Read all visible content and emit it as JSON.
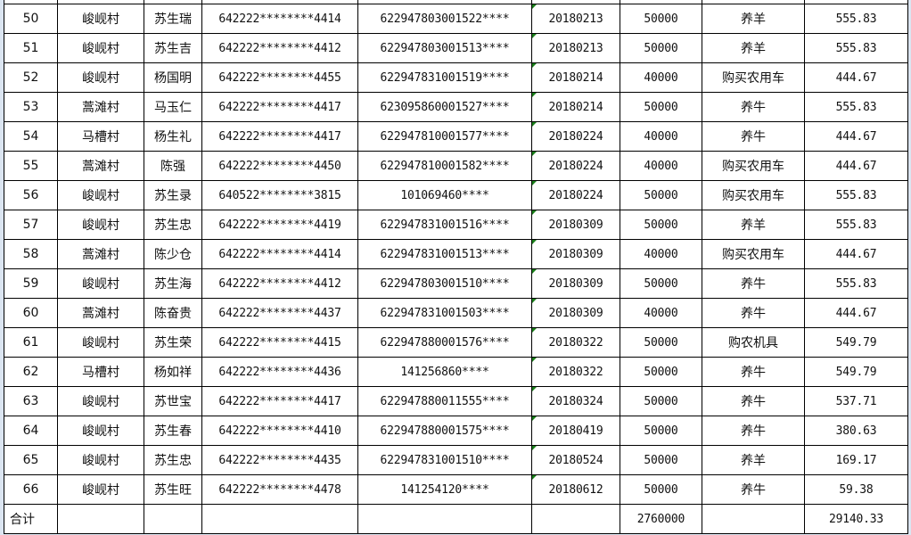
{
  "colors": {
    "gridline": "#000000",
    "frame": "#dbe5f1",
    "text_marker": "#1a7f1a"
  },
  "rows": [
    {
      "no": "50",
      "village": "峻岘村",
      "name": "苏生瑞",
      "id": "642222********4414",
      "account": "622947803001522****",
      "date": "20180213",
      "amount": "50000",
      "purpose": "养羊",
      "interest": "555.83"
    },
    {
      "no": "51",
      "village": "峻岘村",
      "name": "苏生吉",
      "id": "642222********4412",
      "account": "622947803001513****",
      "date": "20180213",
      "amount": "50000",
      "purpose": "养羊",
      "interest": "555.83"
    },
    {
      "no": "52",
      "village": "峻岘村",
      "name": "杨国明",
      "id": "642222********4455",
      "account": "622947831001519****",
      "date": "20180214",
      "amount": "40000",
      "purpose": "购买农用车",
      "interest": "444.67"
    },
    {
      "no": "53",
      "village": "蒿滩村",
      "name": "马玉仁",
      "id": "642222********4417",
      "account": "623095860001527****",
      "date": "20180214",
      "amount": "50000",
      "purpose": "养牛",
      "interest": "555.83"
    },
    {
      "no": "54",
      "village": "马槽村",
      "name": "杨生礼",
      "id": "642222********4417",
      "account": "622947810001577****",
      "date": "20180224",
      "amount": "40000",
      "purpose": "养牛",
      "interest": "444.67"
    },
    {
      "no": "55",
      "village": "蒿滩村",
      "name": "陈强",
      "id": "642222********4450",
      "account": "622947810001582****",
      "date": "20180224",
      "amount": "40000",
      "purpose": "购买农用车",
      "interest": "444.67"
    },
    {
      "no": "56",
      "village": "峻岘村",
      "name": "苏生录",
      "id": "640522********3815",
      "account": "101069460****",
      "date": "20180224",
      "amount": "50000",
      "purpose": "购买农用车",
      "interest": "555.83"
    },
    {
      "no": "57",
      "village": "峻岘村",
      "name": "苏生忠",
      "id": "642222********4419",
      "account": "622947831001516****",
      "date": "20180309",
      "amount": "50000",
      "purpose": "养羊",
      "interest": "555.83"
    },
    {
      "no": "58",
      "village": "蒿滩村",
      "name": "陈少仓",
      "id": "642222********4414",
      "account": "622947831001513****",
      "date": "20180309",
      "amount": "40000",
      "purpose": "购买农用车",
      "interest": "444.67"
    },
    {
      "no": "59",
      "village": "峻岘村",
      "name": "苏生海",
      "id": "642222********4412",
      "account": "622947803001510****",
      "date": "20180309",
      "amount": "50000",
      "purpose": "养牛",
      "interest": "555.83"
    },
    {
      "no": "60",
      "village": "蒿滩村",
      "name": "陈奋贵",
      "id": "642222********4437",
      "account": "622947831001503****",
      "date": "20180309",
      "amount": "40000",
      "purpose": "养牛",
      "interest": "444.67"
    },
    {
      "no": "61",
      "village": "峻岘村",
      "name": "苏生荣",
      "id": "642222********4415",
      "account": "622947880001576****",
      "date": "20180322",
      "amount": "50000",
      "purpose": "购农机具",
      "interest": "549.79"
    },
    {
      "no": "62",
      "village": "马槽村",
      "name": "杨如祥",
      "id": "642222********4436",
      "account": "141256860****",
      "date": "20180322",
      "amount": "50000",
      "purpose": "养牛",
      "interest": "549.79"
    },
    {
      "no": "63",
      "village": "峻岘村",
      "name": "苏世宝",
      "id": "642222********4417",
      "account": "622947880011555****",
      "date": "20180324",
      "amount": "50000",
      "purpose": "养牛",
      "interest": "537.71"
    },
    {
      "no": "64",
      "village": "峻岘村",
      "name": "苏生春",
      "id": "642222********4410",
      "account": "622947880001575****",
      "date": "20180419",
      "amount": "50000",
      "purpose": "养牛",
      "interest": "380.63"
    },
    {
      "no": "65",
      "village": "峻岘村",
      "name": "苏生忠",
      "id": "642222********4435",
      "account": "622947831001510****",
      "date": "20180524",
      "amount": "50000",
      "purpose": "养羊",
      "interest": "169.17"
    },
    {
      "no": "66",
      "village": "峻岘村",
      "name": "苏生旺",
      "id": "642222********4478",
      "account": "141254120****",
      "date": "20180612",
      "amount": "50000",
      "purpose": "养牛",
      "interest": "59.38"
    }
  ],
  "total": {
    "label": "合计",
    "amount": "2760000",
    "interest": "29140.33"
  }
}
